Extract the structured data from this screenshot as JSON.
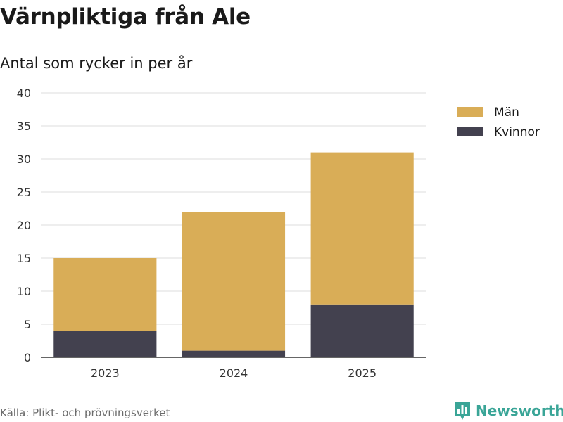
{
  "title": "Värnpliktiga från Ale",
  "subtitle": "Antal som rycker in per år",
  "source": "Källa: Plikt- och prövningsverket",
  "brand": "Newsworthy",
  "colors": {
    "man": "#d9ad57",
    "kvinnor": "#43414f",
    "grid": "#dddddd",
    "axis": "#333333",
    "brand": "#3aa597"
  },
  "chart_data": {
    "type": "bar",
    "stacked": true,
    "title": "Värnpliktiga från Ale",
    "subtitle": "Antal som rycker in per år",
    "xlabel": "",
    "ylabel": "",
    "categories": [
      "2023",
      "2024",
      "2025"
    ],
    "series": [
      {
        "name": "Kvinnor",
        "values": [
          4,
          1,
          8
        ]
      },
      {
        "name": "Män",
        "values": [
          11,
          21,
          23
        ]
      }
    ],
    "ylim": [
      0,
      40
    ],
    "yticks": [
      0,
      5,
      10,
      15,
      20,
      25,
      30,
      35,
      40
    ],
    "grid": true,
    "legend": {
      "placement": "top-right",
      "entries": [
        "Män",
        "Kvinnor"
      ]
    }
  }
}
